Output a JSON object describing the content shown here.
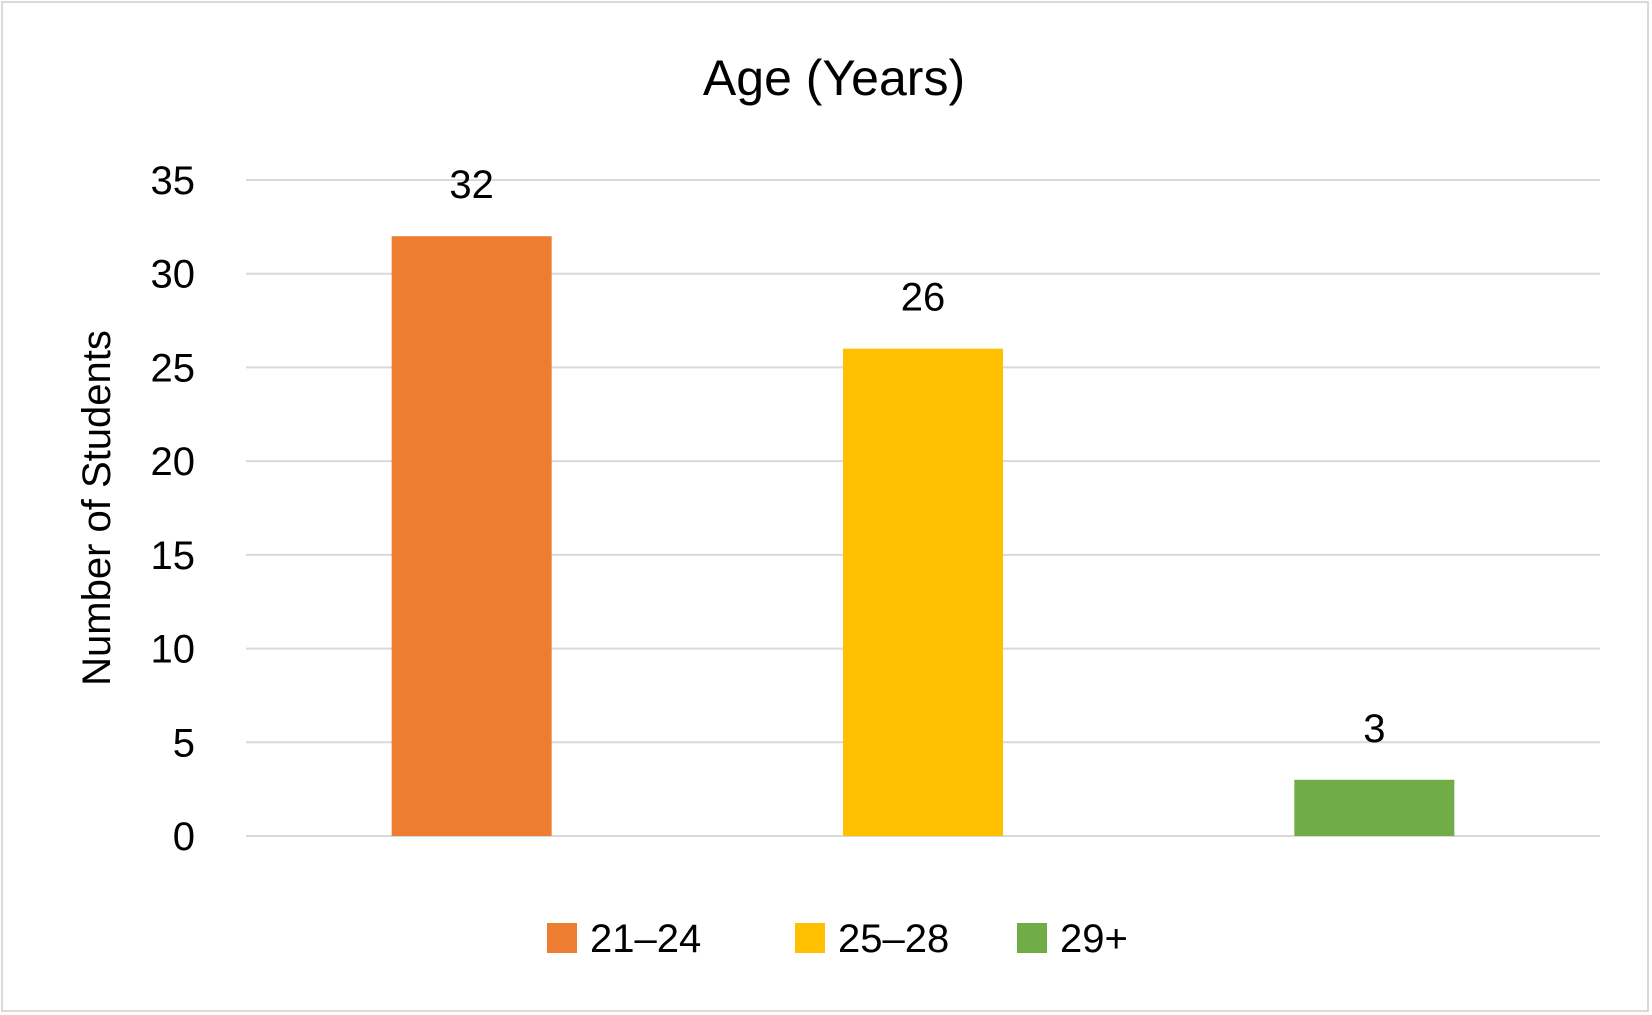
{
  "chart_data": {
    "type": "bar",
    "title": "Age (Years)",
    "xlabel": "",
    "ylabel": "Number of Students",
    "categories": [
      "21–24",
      "25–28",
      "29+"
    ],
    "values": [
      32,
      26,
      3
    ],
    "colors": [
      "#ED7D31",
      "#FFC000",
      "#70AD47"
    ],
    "ylim": [
      0,
      35
    ],
    "yticks": [
      0,
      5,
      10,
      15,
      20,
      25,
      30,
      35
    ],
    "grid": true,
    "gridline_color": "#d9d9d9",
    "data_labels": true,
    "legend_position": "bottom"
  }
}
